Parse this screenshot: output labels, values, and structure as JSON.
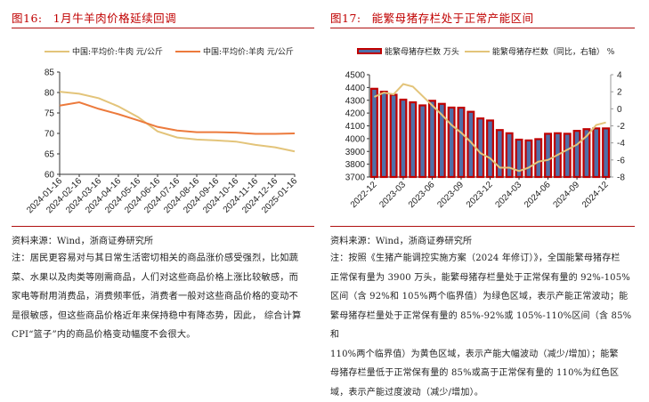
{
  "left": {
    "figure_no": "图16:",
    "title": "1月牛羊肉价格延续回调",
    "legend": [
      {
        "label": "中国:平均价:牛肉 元/公斤",
        "color": "#e3c47a"
      },
      {
        "label": "中国:平均价:羊肉 元/公斤",
        "color": "#ec7a3c"
      }
    ],
    "source": "资料来源：Wind，浙商证券研究所",
    "note_lines": [
      "注：居民更容易对与其日常生活密切相关的商品涨价感受强烈，比如蔬",
      "菜、水果以及肉类等刚需商品，人们对这些商品价格上涨比较敏感，而",
      "家电等耐用消费品，消费频率低，消费者一般对这些商品价格的变动不",
      "是很敏感，但这些商品价格近年来保持稳中有降态势，因此， 综合计算",
      "CPI“篮子”内的商品价格变动幅度不会很大。"
    ]
  },
  "right": {
    "figure_no": "图17:",
    "title": "能繁母猪存栏处于正常产能区间",
    "legend": [
      {
        "label": "能繁母猪存栏数 万头",
        "color": "#4f6fa8",
        "border": "#c00000"
      },
      {
        "label": "能繁母猪存栏数（同比，右轴） %",
        "color": "#e3c47a"
      }
    ],
    "source": "资料来源：Wind，浙商证券研究所",
    "note_lines": [
      "注：按照《生猪产能调控实施方案（2024 年修订）》，全国能繁母猪存栏",
      "正常保有量为 3900 万头，能繁母猪存栏量处于正常保有量的 92%-105%",
      "区间（含 92%和 105%两个临界值）为绿色区域，表示产能正常波动；能",
      "繁母猪存栏量处于正常保有量的 85%-92%或 105%-110%区间（含 85%和",
      "110%两个临界值）为黄色区域，表示产能大幅波动（减少/增加）；能繁",
      "母猪存栏量低于正常保有量的 85%或高于正常保有量的 110%为红色区",
      "域，表示产能过度波动（减少/增加）。"
    ]
  },
  "chart_data": [
    {
      "type": "line",
      "title": "1月牛羊肉价格延续回调",
      "xlabel": "",
      "ylabel": "元/公斤",
      "ylim": [
        60,
        85
      ],
      "yticks": [
        60,
        65,
        70,
        75,
        80,
        85
      ],
      "x": [
        "2024-01-16",
        "2024-02-16",
        "2024-03-16",
        "2024-04-16",
        "2024-05-16",
        "2024-06-16",
        "2024-07-16",
        "2024-08-16",
        "2024-09-16",
        "2024-10-16",
        "2024-11-16",
        "2024-12-16",
        "2025-01-16"
      ],
      "series": [
        {
          "name": "中国:平均价:牛肉 元/公斤",
          "color": "#e3c47a",
          "values": [
            80.2,
            79.7,
            78.6,
            76.6,
            74.0,
            70.5,
            69.0,
            68.5,
            68.3,
            68.0,
            67.2,
            66.6,
            65.6
          ]
        },
        {
          "name": "中国:平均价:羊肉 元/公斤",
          "color": "#ec7a3c",
          "values": [
            76.8,
            77.6,
            76.0,
            74.7,
            73.2,
            71.6,
            70.7,
            70.3,
            70.3,
            70.2,
            69.9,
            69.9,
            70.0
          ]
        }
      ],
      "legend_position": "top",
      "grid": false
    },
    {
      "type": "bar+line",
      "title": "能繁母猪存栏处于正常产能区间",
      "x": [
        "2022-12",
        "2023-01",
        "2023-02",
        "2023-03",
        "2023-04",
        "2023-05",
        "2023-06",
        "2023-07",
        "2023-08",
        "2023-09",
        "2023-10",
        "2023-11",
        "2023-12",
        "2024-01",
        "2024-02",
        "2024-03",
        "2024-04",
        "2024-05",
        "2024-06",
        "2024-07",
        "2024-08",
        "2024-09",
        "2024-10",
        "2024-11",
        "2024-12"
      ],
      "xticks": [
        "2022-12",
        "2023-03",
        "2023-06",
        "2023-09",
        "2023-12",
        "2024-03",
        "2024-06",
        "2024-09",
        "2024-12"
      ],
      "series": [
        {
          "name": "能繁母猪存栏数 万头",
          "type": "bar",
          "axis": "left",
          "color": "#4f6fa8",
          "border": "#c00000",
          "values": [
            4390,
            4367,
            4343,
            4305,
            4284,
            4260,
            4296,
            4272,
            4243,
            4242,
            4210,
            4158,
            4142,
            4067,
            4042,
            3992,
            3986,
            3996,
            4038,
            4042,
            4038,
            4061,
            4074,
            4080,
            4080
          ]
        },
        {
          "name": "能繁母猪存栏数（同比，右轴） %",
          "type": "line",
          "axis": "right",
          "color": "#e3c47a",
          "values": [
            1.4,
            1.9,
            1.7,
            2.9,
            2.6,
            1.5,
            0.4,
            -0.7,
            -1.9,
            -2.8,
            -3.9,
            -5.2,
            -5.8,
            -6.9,
            -6.9,
            -7.3,
            -6.9,
            -6.2,
            -6.0,
            -5.4,
            -4.8,
            -4.2,
            -3.2,
            -1.9,
            -1.6
          ]
        }
      ],
      "ylim_left": [
        3700,
        4500
      ],
      "yticks_left": [
        3700,
        3800,
        3900,
        4000,
        4100,
        4200,
        4300,
        4400,
        4500
      ],
      "ylim_right": [
        -8,
        4
      ],
      "yticks_right": [
        -8,
        -6,
        -4,
        -2,
        0,
        2,
        4
      ],
      "legend_position": "top",
      "grid": false
    }
  ]
}
